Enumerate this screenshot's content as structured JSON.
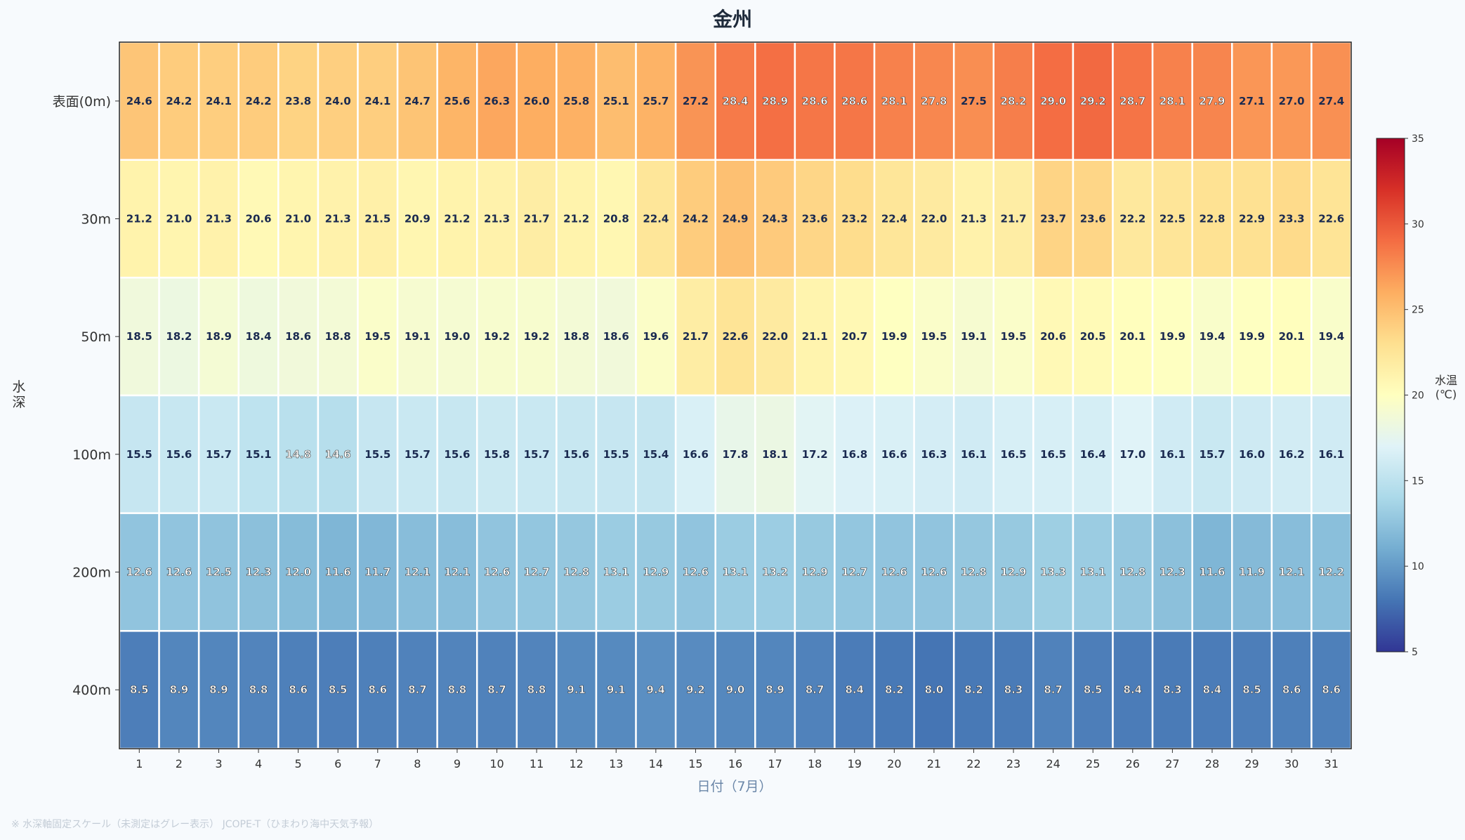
{
  "chart_data": {
    "type": "heatmap",
    "title": "金州",
    "xlabel": "日付（7月）",
    "ylabel": "水深",
    "colorbar_label": "水温(℃)",
    "colorbar_range": [
      5,
      35
    ],
    "colorbar_ticks": [
      "35",
      "30",
      "25",
      "20",
      "15",
      "10",
      "5"
    ],
    "colormap": "RdYlBu_r",
    "rows": [
      "表面(0m)",
      "30m",
      "50m",
      "100m",
      "200m",
      "400m"
    ],
    "columns": [
      "1",
      "2",
      "3",
      "4",
      "5",
      "6",
      "7",
      "8",
      "9",
      "10",
      "11",
      "12",
      "13",
      "14",
      "15",
      "16",
      "17",
      "18",
      "19",
      "20",
      "21",
      "22",
      "23",
      "24",
      "25",
      "26",
      "27",
      "28",
      "29",
      "30",
      "31"
    ],
    "values": [
      [
        24.6,
        24.2,
        24.1,
        24.2,
        23.8,
        24.0,
        24.1,
        24.7,
        25.6,
        26.3,
        26.0,
        25.8,
        25.1,
        25.7,
        27.2,
        28.4,
        28.9,
        28.6,
        28.6,
        28.1,
        27.8,
        27.5,
        28.2,
        29.0,
        29.2,
        28.7,
        28.1,
        27.9,
        27.1,
        27.0,
        27.4
      ],
      [
        21.2,
        21.0,
        21.3,
        20.6,
        21.0,
        21.3,
        21.5,
        20.9,
        21.2,
        21.3,
        21.7,
        21.2,
        20.8,
        22.4,
        24.2,
        24.9,
        24.3,
        23.6,
        23.2,
        22.4,
        22.0,
        21.3,
        21.7,
        23.7,
        23.6,
        22.2,
        22.5,
        22.8,
        22.9,
        23.3,
        22.6
      ],
      [
        18.5,
        18.2,
        18.9,
        18.4,
        18.6,
        18.8,
        19.5,
        19.1,
        19.0,
        19.2,
        19.2,
        18.8,
        18.6,
        19.6,
        21.7,
        22.6,
        22.0,
        21.1,
        20.7,
        19.9,
        19.5,
        19.1,
        19.5,
        20.6,
        20.5,
        20.1,
        19.9,
        19.4,
        19.9,
        20.1,
        19.4
      ],
      [
        15.5,
        15.6,
        15.7,
        15.1,
        14.8,
        14.6,
        15.5,
        15.7,
        15.6,
        15.8,
        15.7,
        15.6,
        15.5,
        15.4,
        16.6,
        17.8,
        18.1,
        17.2,
        16.8,
        16.6,
        16.3,
        16.1,
        16.5,
        16.5,
        16.4,
        17.0,
        16.1,
        15.7,
        16.0,
        16.2,
        16.1
      ],
      [
        12.6,
        12.6,
        12.5,
        12.3,
        12.0,
        11.6,
        11.7,
        12.1,
        12.1,
        12.6,
        12.7,
        12.8,
        13.1,
        12.9,
        12.6,
        13.1,
        13.2,
        12.9,
        12.7,
        12.6,
        12.6,
        12.8,
        12.9,
        13.3,
        13.1,
        12.8,
        12.3,
        11.6,
        11.9,
        12.1,
        12.2
      ],
      [
        8.5,
        8.9,
        8.9,
        8.8,
        8.6,
        8.5,
        8.6,
        8.7,
        8.8,
        8.7,
        8.8,
        9.1,
        9.1,
        9.4,
        9.2,
        9.0,
        8.9,
        8.7,
        8.4,
        8.2,
        8.0,
        8.2,
        8.3,
        8.7,
        8.5,
        8.4,
        8.3,
        8.4,
        8.5,
        8.6,
        8.6
      ]
    ]
  },
  "footnote": "※ 水深軸固定スケール（未測定はグレー表示） JCOPE-T（ひまわり海中天気予報）"
}
